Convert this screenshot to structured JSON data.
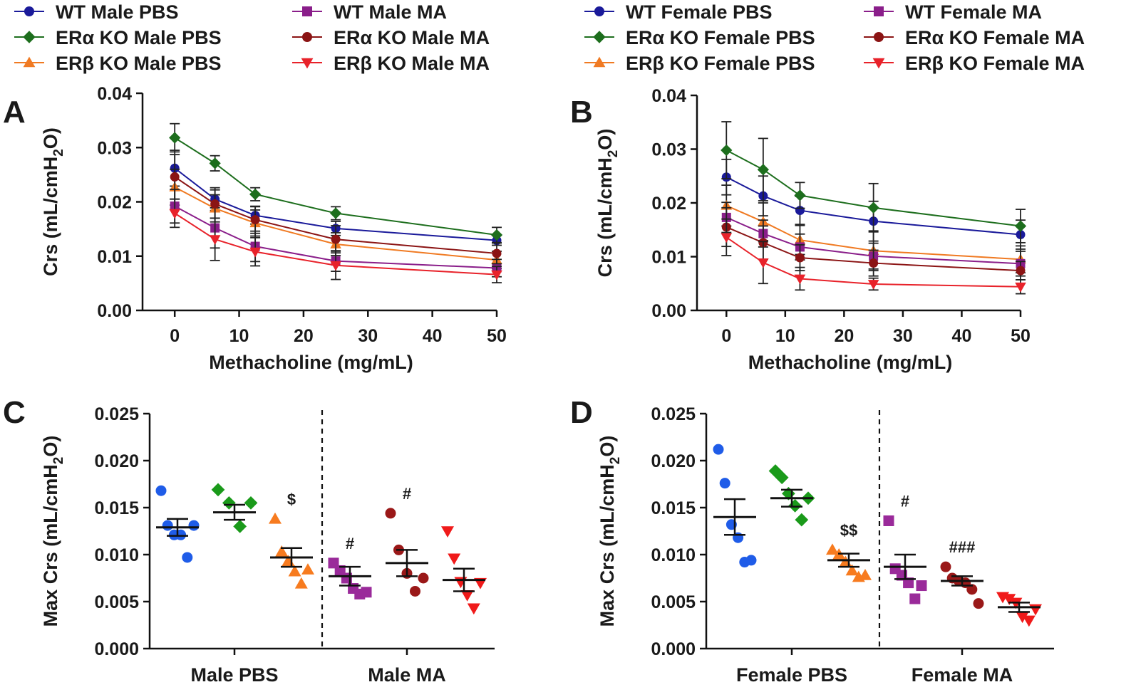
{
  "colors": {
    "WT PBS": "#1a1a9a",
    "ERa KO PBS": "#1d6e1d",
    "ERb KO PBS": "#f07a22",
    "WT MA": "#8a1e8a",
    "ERa KO MA": "#8b1414",
    "ERb KO MA": "#e8222a",
    "scatter_wt_pbs": "#1f5ce8",
    "scatter_era_pbs": "#1a9a1a",
    "scatter_erb_pbs": "#f77b1f",
    "scatter_wt_ma": "#9a2a9a",
    "scatter_era_ma": "#9a1818",
    "scatter_erb_ma": "#f01a1a"
  },
  "legends": [
    {
      "entries": [
        {
          "label": "WT Male PBS",
          "marker": "circle",
          "color": "#1a1a9a"
        },
        {
          "label": "ERα KO Male PBS",
          "marker": "diamond",
          "color": "#1d6e1d"
        },
        {
          "label": "ERβ KO Male PBS",
          "marker": "triangle-up",
          "color": "#f07a22"
        },
        {
          "label": "WT Male MA",
          "marker": "square",
          "color": "#8a1e8a"
        },
        {
          "label": "ERα KO Male MA",
          "marker": "circle",
          "color": "#8b1414"
        },
        {
          "label": "ERβ KO Male MA",
          "marker": "triangle-down",
          "color": "#e8222a"
        }
      ]
    },
    {
      "entries": [
        {
          "label": "WT Female PBS",
          "marker": "circle",
          "color": "#1a1a9a"
        },
        {
          "label": "ERα KO Female PBS",
          "marker": "diamond",
          "color": "#1d6e1d"
        },
        {
          "label": "ERβ KO Female PBS",
          "marker": "triangle-up",
          "color": "#f07a22"
        },
        {
          "label": "WT Female MA",
          "marker": "square",
          "color": "#8a1e8a"
        },
        {
          "label": "ERα KO Female MA",
          "marker": "circle",
          "color": "#8b1414"
        },
        {
          "label": "ERβ KO Female MA",
          "marker": "triangle-down",
          "color": "#e8222a"
        }
      ]
    }
  ],
  "chart_data": [
    {
      "panel": "A",
      "type": "line",
      "xlabel": "Methacholine (mg/mL)",
      "ylabel_main": "Crs (mL/cmH",
      "ylabel_sub": "2",
      "ylabel_end": "O)",
      "x": [
        0,
        6.25,
        12.5,
        25,
        50
      ],
      "xlim": [
        -5,
        50
      ],
      "xticks": [
        0,
        10,
        20,
        30,
        40,
        50
      ],
      "ylim": [
        0,
        0.04
      ],
      "yticks": [
        "0.00",
        "0.01",
        "0.02",
        "0.03",
        "0.04"
      ],
      "series": [
        {
          "name": "WT Male PBS",
          "marker": "circle",
          "color": "#1a1a9a",
          "values": [
            0.0262,
            0.0205,
            0.0175,
            0.0151,
            0.0129
          ],
          "err": [
            0.0033,
            0.0021,
            0.0016,
            0.0013,
            0.0009
          ]
        },
        {
          "name": "ERα KO Male PBS",
          "marker": "diamond",
          "color": "#1d6e1d",
          "values": [
            0.0318,
            0.0271,
            0.0214,
            0.0179,
            0.0139
          ],
          "err": [
            0.0026,
            0.0014,
            0.0012,
            0.0012,
            0.0014
          ]
        },
        {
          "name": "ERβ KO Male PBS",
          "marker": "triangle-up",
          "color": "#f07a22",
          "values": [
            0.0227,
            0.0188,
            0.0161,
            0.0122,
            0.0093
          ],
          "err": [
            0.0033,
            0.0025,
            0.0024,
            0.0021,
            0.0016
          ]
        },
        {
          "name": "WT Male MA",
          "marker": "square",
          "color": "#8a1e8a",
          "values": [
            0.0192,
            0.0152,
            0.0118,
            0.0091,
            0.0078
          ],
          "err": [
            0.0031,
            0.0037,
            0.0028,
            0.0019,
            0.0016
          ]
        },
        {
          "name": "ERα KO Male MA",
          "marker": "circle",
          "color": "#8b1414",
          "values": [
            0.0246,
            0.0196,
            0.0167,
            0.0131,
            0.0105
          ],
          "err": [
            0.0041,
            0.0026,
            0.0025,
            0.0025,
            0.0019
          ]
        },
        {
          "name": "ERβ KO Male MA",
          "marker": "triangle-down",
          "color": "#e8222a",
          "values": [
            0.0179,
            0.0131,
            0.0108,
            0.0083,
            0.0066
          ],
          "err": [
            0.0026,
            0.0039,
            0.0026,
            0.0026,
            0.0015
          ]
        }
      ]
    },
    {
      "panel": "B",
      "type": "line",
      "xlabel": "Methacholine (mg/mL)",
      "ylabel_main": "Crs (mL/cmH",
      "ylabel_sub": "2",
      "ylabel_end": "O)",
      "x": [
        0,
        6.25,
        12.5,
        25,
        50
      ],
      "xlim": [
        -5,
        50
      ],
      "xticks": [
        0,
        10,
        20,
        30,
        40,
        50
      ],
      "ylim": [
        0,
        0.04
      ],
      "yticks": [
        "0.00",
        "0.01",
        "0.02",
        "0.03",
        "0.04"
      ],
      "series": [
        {
          "name": "WT Female PBS",
          "marker": "circle",
          "color": "#1a1a9a",
          "values": [
            0.0248,
            0.0213,
            0.0186,
            0.0166,
            0.0141
          ],
          "err": [
            0.0033,
            0.0037,
            0.0026,
            0.0037,
            0.0027
          ]
        },
        {
          "name": "ERα KO Female PBS",
          "marker": "diamond",
          "color": "#1d6e1d",
          "values": [
            0.0298,
            0.0262,
            0.0214,
            0.0191,
            0.0157
          ],
          "err": [
            0.0053,
            0.0058,
            0.0024,
            0.0045,
            0.0031
          ]
        },
        {
          "name": "ERβ KO Female PBS",
          "marker": "triangle-up",
          "color": "#f07a22",
          "values": [
            0.0195,
            0.0165,
            0.0131,
            0.0111,
            0.0095
          ],
          "err": [
            0.0038,
            0.0035,
            0.0027,
            0.0037,
            0.0025
          ]
        },
        {
          "name": "WT Female MA",
          "marker": "square",
          "color": "#8a1e8a",
          "values": [
            0.0173,
            0.0143,
            0.0118,
            0.0101,
            0.0087
          ],
          "err": [
            0.0028,
            0.0025,
            0.0024,
            0.0024,
            0.0023
          ]
        },
        {
          "name": "ERα KO Female MA",
          "marker": "circle",
          "color": "#8b1414",
          "values": [
            0.0155,
            0.0126,
            0.0098,
            0.0088,
            0.0074
          ],
          "err": [
            0.0036,
            0.0031,
            0.0024,
            0.0024,
            0.0017
          ]
        },
        {
          "name": "ERβ KO Female MA",
          "marker": "triangle-down",
          "color": "#e8222a",
          "values": [
            0.0136,
            0.0089,
            0.0059,
            0.0049,
            0.0044
          ],
          "err": [
            0.0034,
            0.0039,
            0.0021,
            0.0011,
            0.0013
          ]
        }
      ]
    },
    {
      "panel": "C",
      "type": "scatter",
      "ylabel_main": "Max Crs (mL/cmH",
      "ylabel_sub": "2",
      "ylabel_end": "O)",
      "ylim": [
        0,
        0.025
      ],
      "yticks": [
        "0.000",
        "0.005",
        "0.010",
        "0.015",
        "0.020",
        "0.025"
      ],
      "categories": [
        "Male PBS",
        "Male MA"
      ],
      "groups": [
        {
          "name": "WT Male PBS",
          "category": 0,
          "slot": 0,
          "marker": "circle",
          "color": "#1f5ce8",
          "mean": 0.0129,
          "sem": 0.0009,
          "points": [
            0.0168,
            0.0131,
            0.0121,
            0.0121,
            0.0097,
            0.0131
          ],
          "sig": ""
        },
        {
          "name": "ERα KO Male PBS",
          "category": 0,
          "slot": 1,
          "marker": "diamond",
          "color": "#1a9a1a",
          "values_note": "",
          "mean": 0.0145,
          "sem": 0.0008,
          "points": [
            0.0169,
            0.0155,
            0.013,
            0.0155
          ],
          "sig": ""
        },
        {
          "name": "ERβ KO Male PBS",
          "category": 0,
          "slot": 2,
          "marker": "triangle-up",
          "color": "#f77b1f",
          "mean": 0.0097,
          "sem": 0.001,
          "points": [
            0.0138,
            0.0103,
            0.0093,
            0.0082,
            0.0069,
            0.0084
          ],
          "sig": "$"
        },
        {
          "name": "WT Male MA",
          "category": 1,
          "slot": 0,
          "marker": "square",
          "color": "#9a2a9a",
          "mean": 0.0077,
          "sem": 0.001,
          "points": [
            0.0091,
            0.0083,
            0.0075,
            0.0064,
            0.0058,
            0.006
          ],
          "sig": "#"
        },
        {
          "name": "ERα KO Male MA",
          "category": 1,
          "slot": 1,
          "marker": "circle",
          "color": "#9a1818",
          "mean": 0.0091,
          "sem": 0.0014,
          "points": [
            0.0144,
            0.0105,
            0.008,
            0.0061,
            0.0075
          ],
          "sig": "#"
        },
        {
          "name": "ERβ KO Male MA",
          "category": 1,
          "slot": 2,
          "marker": "triangle-down",
          "color": "#f01a1a",
          "mean": 0.0073,
          "sem": 0.0012,
          "points": [
            0.0125,
            0.0096,
            0.0071,
            0.0057,
            0.0043,
            0.007
          ],
          "sig": ""
        }
      ]
    },
    {
      "panel": "D",
      "type": "scatter",
      "ylabel_main": "Max Crs (mL/cmH",
      "ylabel_sub": "2",
      "ylabel_end": "O)",
      "ylim": [
        0,
        0.025
      ],
      "yticks": [
        "0.000",
        "0.005",
        "0.010",
        "0.015",
        "0.020",
        "0.025"
      ],
      "categories": [
        "Female PBS",
        "Female MA"
      ],
      "groups": [
        {
          "name": "WT Female PBS",
          "category": 0,
          "slot": 0,
          "marker": "circle",
          "color": "#1f5ce8",
          "mean": 0.014,
          "sem": 0.0019,
          "points": [
            0.0212,
            0.0176,
            0.0132,
            0.0118,
            0.0092,
            0.0094
          ],
          "sig": ""
        },
        {
          "name": "ERα KO Female PBS",
          "category": 0,
          "slot": 1,
          "marker": "diamond",
          "color": "#1a9a1a",
          "mean": 0.016,
          "sem": 0.0009,
          "points": [
            0.0189,
            0.0182,
            0.0165,
            0.0152,
            0.0137,
            0.016
          ],
          "sig": ""
        },
        {
          "name": "ERβ KO Female PBS",
          "category": 0,
          "slot": 2,
          "marker": "triangle-up",
          "color": "#f77b1f",
          "mean": 0.0094,
          "sem": 0.0007,
          "points": [
            0.0105,
            0.01,
            0.0092,
            0.0083,
            0.0076,
            0.0078
          ],
          "sig": "$$"
        },
        {
          "name": "WT Female MA",
          "category": 1,
          "slot": 0,
          "marker": "square",
          "color": "#9a2a9a",
          "mean": 0.0087,
          "sem": 0.0013,
          "points": [
            0.0136,
            0.0085,
            0.0078,
            0.007,
            0.0053,
            0.0067
          ],
          "sig": "#"
        },
        {
          "name": "ERα KO Female MA",
          "category": 1,
          "slot": 1,
          "marker": "circle",
          "color": "#9a1818",
          "mean": 0.0072,
          "sem": 0.0005,
          "points": [
            0.0087,
            0.0075,
            0.0072,
            0.007,
            0.0063,
            0.0048
          ],
          "sig": "###"
        },
        {
          "name": "ERβ KO Female MA",
          "category": 1,
          "slot": 2,
          "marker": "triangle-down",
          "color": "#f01a1a",
          "mean": 0.0044,
          "sem": 0.0005,
          "points": [
            0.0055,
            0.0053,
            0.0049,
            0.0034,
            0.003,
            0.0042
          ],
          "sig": ""
        }
      ]
    }
  ]
}
